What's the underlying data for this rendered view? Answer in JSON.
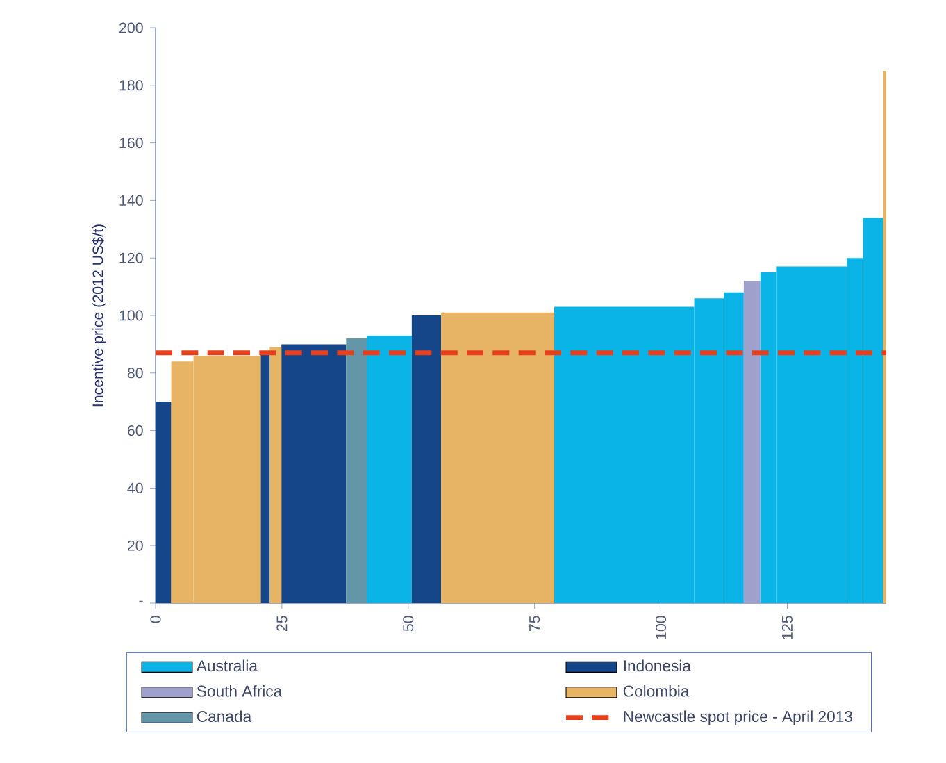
{
  "chart_data": {
    "type": "histogram",
    "ylabel": "Incentive price (2012 US$/t)",
    "bins": [
      0,
      3.1,
      7.5,
      20.8,
      22.6,
      24.9,
      37.7,
      41.8,
      50.7,
      56.5,
      78.9,
      106.6,
      112.5,
      116.4,
      119.7,
      122.8,
      136.8,
      140,
      144,
      144.6
    ],
    "series": [
      {
        "name": "Australia",
        "color": "#0ab4e6",
        "values": [
          null,
          null,
          null,
          null,
          null,
          null,
          null,
          93,
          null,
          null,
          103,
          106,
          108,
          null,
          115,
          117,
          120,
          134,
          null
        ]
      },
      {
        "name": "Indonesia",
        "color": "#15468a",
        "values": [
          70,
          null,
          null,
          87,
          null,
          90,
          null,
          null,
          100,
          null,
          null,
          null,
          null,
          null,
          null,
          null,
          null,
          null,
          null
        ]
      },
      {
        "name": "South Africa",
        "color": "#a0a0cc",
        "values": [
          null,
          null,
          null,
          null,
          null,
          null,
          null,
          null,
          null,
          null,
          null,
          null,
          null,
          112,
          null,
          null,
          null,
          null,
          null
        ]
      },
      {
        "name": "Colombia",
        "color": "#e6b464",
        "values": [
          null,
          84,
          86,
          null,
          89,
          null,
          null,
          null,
          null,
          101,
          null,
          null,
          null,
          null,
          null,
          null,
          null,
          null,
          185
        ]
      },
      {
        "name": "Canada",
        "color": "#6496aa",
        "values": [
          null,
          null,
          null,
          null,
          null,
          null,
          92,
          null,
          null,
          null,
          null,
          null,
          null,
          null,
          null,
          null,
          null,
          null,
          null
        ]
      }
    ],
    "xlim": [
      0,
      144.6
    ],
    "xticks": [
      0,
      25,
      50,
      75,
      100,
      125
    ],
    "ylim": [
      0,
      200
    ],
    "yticks": [
      {
        "value": 0,
        "label": "-"
      },
      20,
      40,
      60,
      80,
      100,
      120,
      140,
      160,
      180,
      200
    ],
    "ref_lines": [
      {
        "axis": "y",
        "value": 87,
        "label": "Newcastle spot price - April 2013",
        "color": "#e8401c",
        "line_style": "dashed"
      }
    ],
    "legend": "bottom"
  }
}
